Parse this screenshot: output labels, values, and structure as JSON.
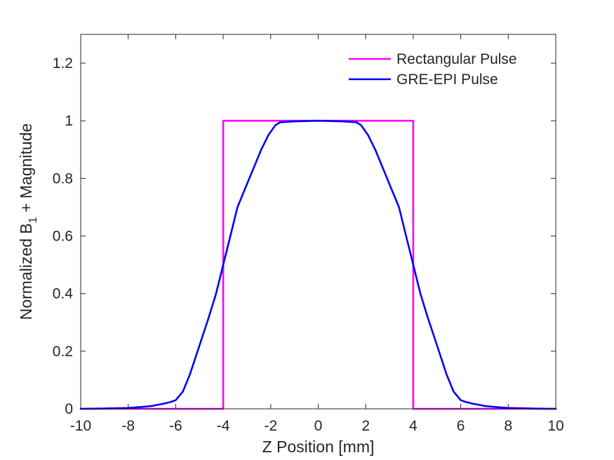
{
  "chart_data": {
    "type": "line",
    "xlabel": "Z Position [mm]",
    "ylabel": {
      "pre": "Normalized B",
      "sub": "1",
      "post": " + Magnitude"
    },
    "xlim": [
      -10,
      10
    ],
    "ylim": [
      0,
      1.3
    ],
    "xticks": [
      -10,
      -8,
      -6,
      -4,
      -2,
      0,
      2,
      4,
      6,
      8,
      10
    ],
    "yticks": [
      0,
      0.2,
      0.4,
      0.6,
      0.8,
      1,
      1.2
    ],
    "grid": false,
    "legend_position": "top-right",
    "series": [
      {
        "name": "Rectangular Pulse",
        "color": "#FF00FF",
        "x": [
          -10,
          -4,
          -4,
          4,
          4,
          10
        ],
        "y": [
          0,
          0,
          1,
          1,
          0,
          0
        ]
      },
      {
        "name": "GRE-EPI Pulse",
        "color": "#0000FF",
        "x": [
          -10,
          -9,
          -8,
          -7.5,
          -7,
          -6.5,
          -6.2,
          -6,
          -5.7,
          -5.4,
          -5,
          -4.6,
          -4.3,
          -4,
          -3.7,
          -3.4,
          -3,
          -2.7,
          -2.4,
          -2.1,
          -1.8,
          -1.6,
          -1,
          0,
          1,
          1.6,
          1.8,
          2.1,
          2.4,
          2.7,
          3,
          3.4,
          3.7,
          4,
          4.3,
          4.6,
          5,
          5.4,
          5.7,
          6,
          6.2,
          6.5,
          7,
          7.5,
          8,
          9,
          10
        ],
        "y": [
          0,
          0.001,
          0.003,
          0.006,
          0.01,
          0.018,
          0.024,
          0.03,
          0.06,
          0.12,
          0.22,
          0.32,
          0.4,
          0.5,
          0.6,
          0.7,
          0.78,
          0.84,
          0.9,
          0.95,
          0.985,
          0.995,
          0.998,
          1.0,
          0.998,
          0.995,
          0.985,
          0.95,
          0.9,
          0.84,
          0.78,
          0.7,
          0.6,
          0.5,
          0.4,
          0.32,
          0.22,
          0.12,
          0.06,
          0.03,
          0.024,
          0.018,
          0.01,
          0.006,
          0.003,
          0.001,
          0
        ]
      }
    ]
  }
}
